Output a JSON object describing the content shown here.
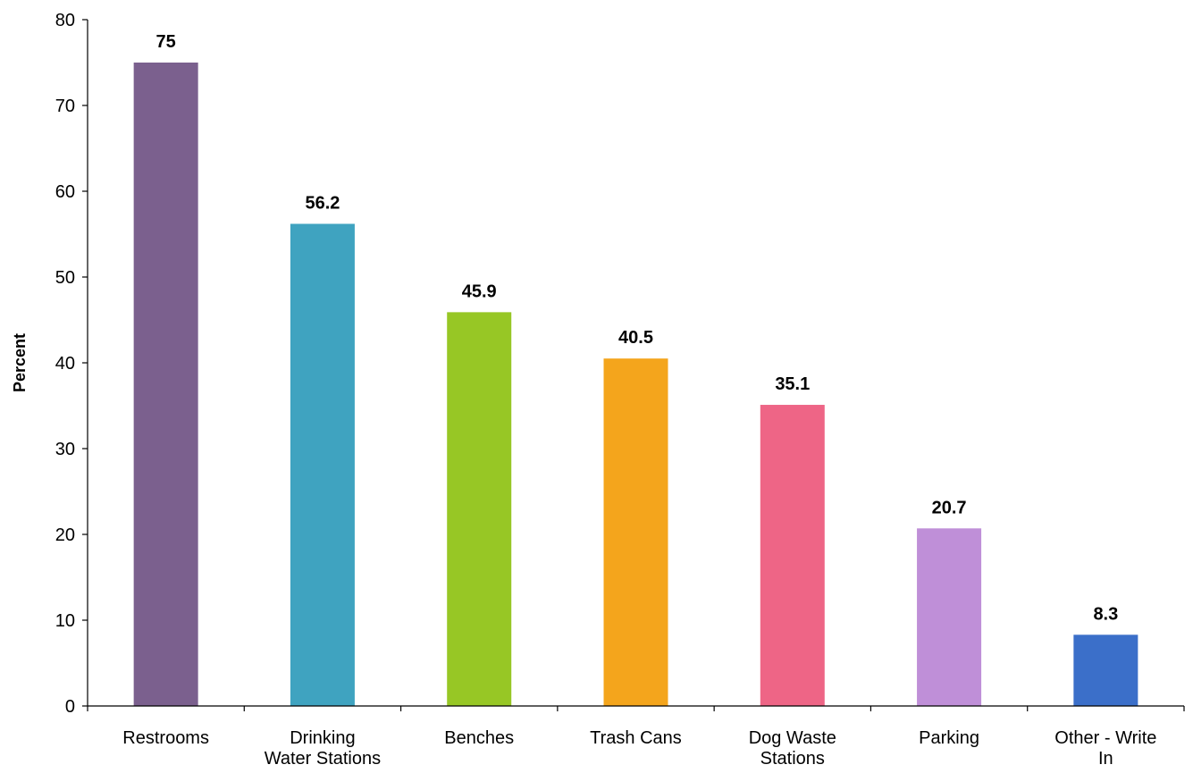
{
  "chart_data": {
    "type": "bar",
    "categories": [
      "Restrooms",
      "Drinking Water Stations",
      "Benches",
      "Trash Cans",
      "Dog Waste Stations",
      "Parking",
      "Other - Write In"
    ],
    "category_lines": [
      [
        "Restrooms"
      ],
      [
        "Drinking",
        "Water Stations"
      ],
      [
        "Benches"
      ],
      [
        "Trash Cans"
      ],
      [
        "Dog Waste",
        "Stations"
      ],
      [
        "Parking"
      ],
      [
        "Other - Write",
        "In"
      ]
    ],
    "values": [
      75,
      56.2,
      45.9,
      40.5,
      35.1,
      20.7,
      8.3
    ],
    "data_labels": [
      "75",
      "56.2",
      "45.9",
      "40.5",
      "35.1",
      "20.7",
      "8.3"
    ],
    "colors": [
      "#7b608e",
      "#3fa3c0",
      "#97c725",
      "#f4a51c",
      "#ee6586",
      "#bf8fd8",
      "#3b6fc9"
    ],
    "ylabel": "Percent",
    "xlabel": "",
    "title": "",
    "ylim": [
      0,
      80
    ],
    "yticks": [
      0,
      10,
      20,
      30,
      40,
      50,
      60,
      70,
      80
    ],
    "grid": false,
    "legend": "none"
  }
}
